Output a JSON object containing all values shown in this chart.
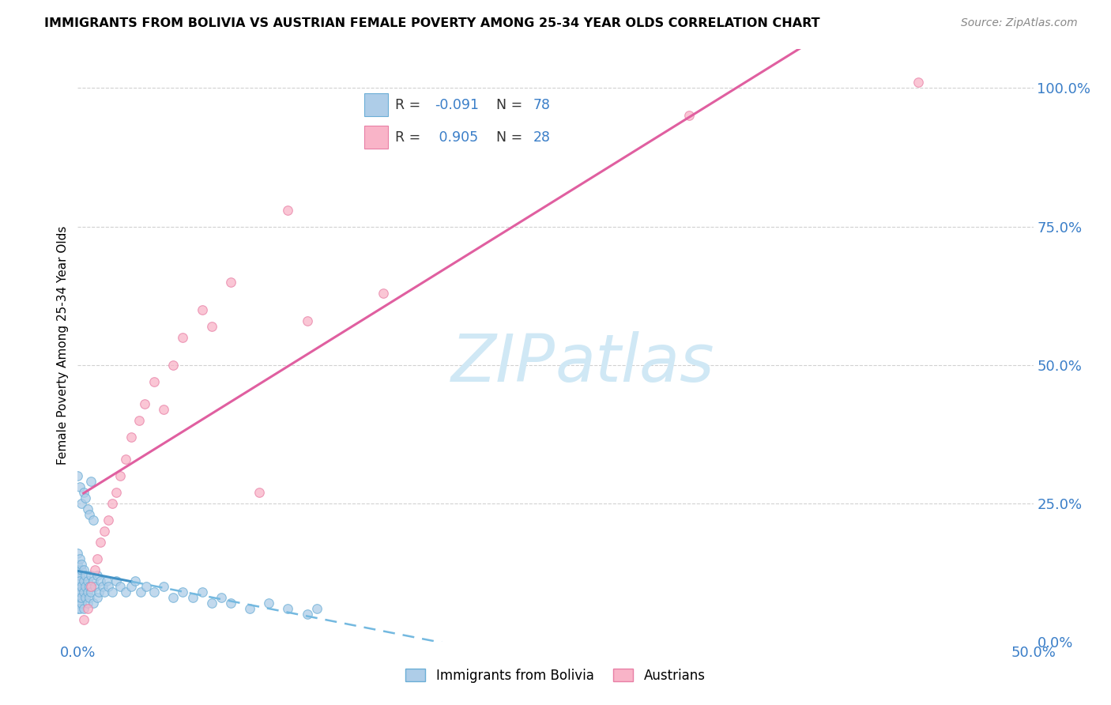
{
  "title": "IMMIGRANTS FROM BOLIVIA VS AUSTRIAN FEMALE POVERTY AMONG 25-34 YEAR OLDS CORRELATION CHART",
  "source": "Source: ZipAtlas.com",
  "ylabel": "Female Poverty Among 25-34 Year Olds",
  "xlim": [
    0.0,
    0.5
  ],
  "ylim": [
    0.0,
    1.07
  ],
  "xticks": [
    0.0,
    0.125,
    0.25,
    0.375,
    0.5
  ],
  "xtick_labels": [
    "0.0%",
    "",
    "",
    "",
    "50.0%"
  ],
  "yticks_right": [
    0.0,
    0.25,
    0.5,
    0.75,
    1.0
  ],
  "ytick_labels_right": [
    "0.0%",
    "25.0%",
    "50.0%",
    "75.0%",
    "100.0%"
  ],
  "color_blue_face": "#aecde8",
  "color_blue_edge": "#6baed6",
  "color_pink_face": "#f9b4c8",
  "color_pink_edge": "#e87fa5",
  "line_blue_solid": "#4292c6",
  "line_blue_dash": "#74b9e0",
  "line_pink": "#e05fa0",
  "watermark_color": "#d0e8f5",
  "grid_color": "#cccccc",
  "title_fontsize": 11.5,
  "source_fontsize": 10,
  "tick_fontsize": 13,
  "ylabel_fontsize": 11,
  "legend_fontsize": 12,
  "bolivia_x": [
    0.0,
    0.0,
    0.0,
    0.0,
    0.0,
    0.0,
    0.0,
    0.0,
    0.0,
    0.0,
    0.001,
    0.001,
    0.001,
    0.001,
    0.001,
    0.001,
    0.001,
    0.002,
    0.002,
    0.002,
    0.002,
    0.002,
    0.003,
    0.003,
    0.003,
    0.003,
    0.004,
    0.004,
    0.004,
    0.005,
    0.005,
    0.005,
    0.006,
    0.006,
    0.007,
    0.007,
    0.008,
    0.008,
    0.009,
    0.01,
    0.01,
    0.011,
    0.012,
    0.013,
    0.014,
    0.015,
    0.016,
    0.018,
    0.02,
    0.022,
    0.025,
    0.028,
    0.03,
    0.033,
    0.036,
    0.04,
    0.045,
    0.05,
    0.055,
    0.06,
    0.065,
    0.07,
    0.075,
    0.08,
    0.09,
    0.1,
    0.11,
    0.12,
    0.125,
    0.0,
    0.001,
    0.002,
    0.003,
    0.004,
    0.005,
    0.006,
    0.007,
    0.008
  ],
  "bolivia_y": [
    0.12,
    0.1,
    0.08,
    0.14,
    0.06,
    0.16,
    0.11,
    0.09,
    0.07,
    0.13,
    0.15,
    0.1,
    0.08,
    0.12,
    0.06,
    0.09,
    0.11,
    0.13,
    0.07,
    0.1,
    0.08,
    0.14,
    0.09,
    0.11,
    0.06,
    0.13,
    0.1,
    0.08,
    0.12,
    0.09,
    0.11,
    0.07,
    0.1,
    0.08,
    0.12,
    0.09,
    0.11,
    0.07,
    0.1,
    0.12,
    0.08,
    0.09,
    0.11,
    0.1,
    0.09,
    0.11,
    0.1,
    0.09,
    0.11,
    0.1,
    0.09,
    0.1,
    0.11,
    0.09,
    0.1,
    0.09,
    0.1,
    0.08,
    0.09,
    0.08,
    0.09,
    0.07,
    0.08,
    0.07,
    0.06,
    0.07,
    0.06,
    0.05,
    0.06,
    0.3,
    0.28,
    0.25,
    0.27,
    0.26,
    0.24,
    0.23,
    0.29,
    0.22
  ],
  "austrian_x": [
    0.003,
    0.005,
    0.007,
    0.009,
    0.01,
    0.012,
    0.014,
    0.016,
    0.018,
    0.02,
    0.022,
    0.025,
    0.028,
    0.032,
    0.035,
    0.04,
    0.045,
    0.05,
    0.055,
    0.065,
    0.07,
    0.08,
    0.095,
    0.11,
    0.12,
    0.16,
    0.32,
    0.44
  ],
  "austrian_y": [
    0.04,
    0.06,
    0.1,
    0.13,
    0.15,
    0.18,
    0.2,
    0.22,
    0.25,
    0.27,
    0.3,
    0.33,
    0.37,
    0.4,
    0.43,
    0.47,
    0.42,
    0.5,
    0.55,
    0.6,
    0.57,
    0.65,
    0.27,
    0.78,
    0.58,
    0.63,
    0.95,
    1.01
  ]
}
